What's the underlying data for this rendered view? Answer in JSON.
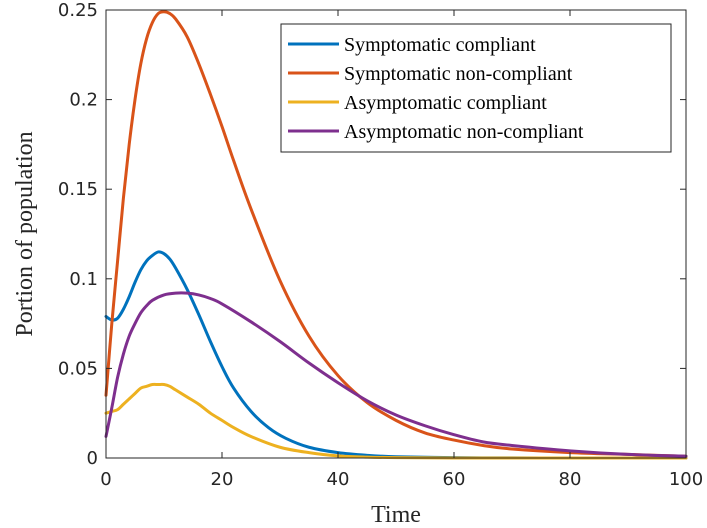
{
  "chart_data": {
    "type": "line",
    "title": "",
    "xlabel": "Time",
    "ylabel": "Portion of population",
    "xlim": [
      0,
      100
    ],
    "ylim": [
      0,
      0.25
    ],
    "x_ticks": [
      0,
      20,
      40,
      60,
      80,
      100
    ],
    "y_ticks": [
      0,
      0.05,
      0.1,
      0.15,
      0.2,
      0.25
    ],
    "y_tick_labels": [
      "0",
      "0.05",
      "0.1",
      "0.15",
      "0.2",
      "0.25"
    ],
    "grid": false,
    "legend_position": "top-right",
    "series": [
      {
        "name": "Symptomatic compliant",
        "color": "#0072BD",
        "x": [
          0,
          1,
          2,
          3,
          4,
          5,
          6,
          7,
          8,
          9,
          10,
          11,
          12,
          14,
          16,
          18,
          20,
          22,
          25,
          28,
          31,
          35,
          40,
          45,
          50,
          60,
          70,
          80,
          90,
          100
        ],
        "y": [
          0.079,
          0.077,
          0.078,
          0.083,
          0.09,
          0.098,
          0.105,
          0.11,
          0.113,
          0.115,
          0.114,
          0.111,
          0.106,
          0.094,
          0.08,
          0.065,
          0.051,
          0.039,
          0.026,
          0.017,
          0.011,
          0.006,
          0.003,
          0.0015,
          0.0007,
          0.0002,
          5e-05,
          1e-05,
          0,
          0
        ]
      },
      {
        "name": "Symptomatic non-compliant",
        "color": "#D95319",
        "x": [
          0,
          1,
          2,
          3,
          4,
          5,
          6,
          7,
          8,
          9,
          10,
          11,
          12,
          14,
          16,
          18,
          20,
          22,
          25,
          30,
          35,
          40,
          45,
          50,
          55,
          60,
          65,
          70,
          80,
          90,
          100
        ],
        "y": [
          0.035,
          0.075,
          0.11,
          0.145,
          0.175,
          0.2,
          0.22,
          0.234,
          0.243,
          0.248,
          0.249,
          0.248,
          0.245,
          0.235,
          0.22,
          0.203,
          0.185,
          0.166,
          0.139,
          0.099,
          0.068,
          0.046,
          0.031,
          0.021,
          0.014,
          0.01,
          0.007,
          0.005,
          0.003,
          0.002,
          0.001
        ]
      },
      {
        "name": "Asymptomatic compliant",
        "color": "#EDB120",
        "x": [
          0,
          1,
          2,
          3,
          4,
          5,
          6,
          7,
          8,
          9,
          10,
          11,
          12,
          14,
          16,
          18,
          20,
          22,
          25,
          30,
          35,
          40,
          45,
          50,
          60,
          80,
          100
        ],
        "y": [
          0.025,
          0.026,
          0.027,
          0.03,
          0.033,
          0.036,
          0.039,
          0.04,
          0.041,
          0.041,
          0.041,
          0.04,
          0.038,
          0.034,
          0.03,
          0.025,
          0.021,
          0.017,
          0.012,
          0.006,
          0.003,
          0.0012,
          0.0005,
          0.0002,
          3e-05,
          0,
          0
        ]
      },
      {
        "name": "Asymptomatic non-compliant",
        "color": "#7E2F8E",
        "x": [
          0,
          1,
          2,
          3,
          4,
          5,
          6,
          7,
          8,
          10,
          12,
          14,
          16,
          18,
          20,
          25,
          30,
          35,
          40,
          45,
          50,
          55,
          60,
          65,
          70,
          80,
          90,
          100
        ],
        "y": [
          0.012,
          0.028,
          0.045,
          0.058,
          0.068,
          0.075,
          0.081,
          0.085,
          0.088,
          0.091,
          0.092,
          0.092,
          0.091,
          0.089,
          0.086,
          0.076,
          0.065,
          0.053,
          0.042,
          0.032,
          0.024,
          0.018,
          0.013,
          0.009,
          0.007,
          0.004,
          0.002,
          0.001
        ]
      }
    ]
  }
}
